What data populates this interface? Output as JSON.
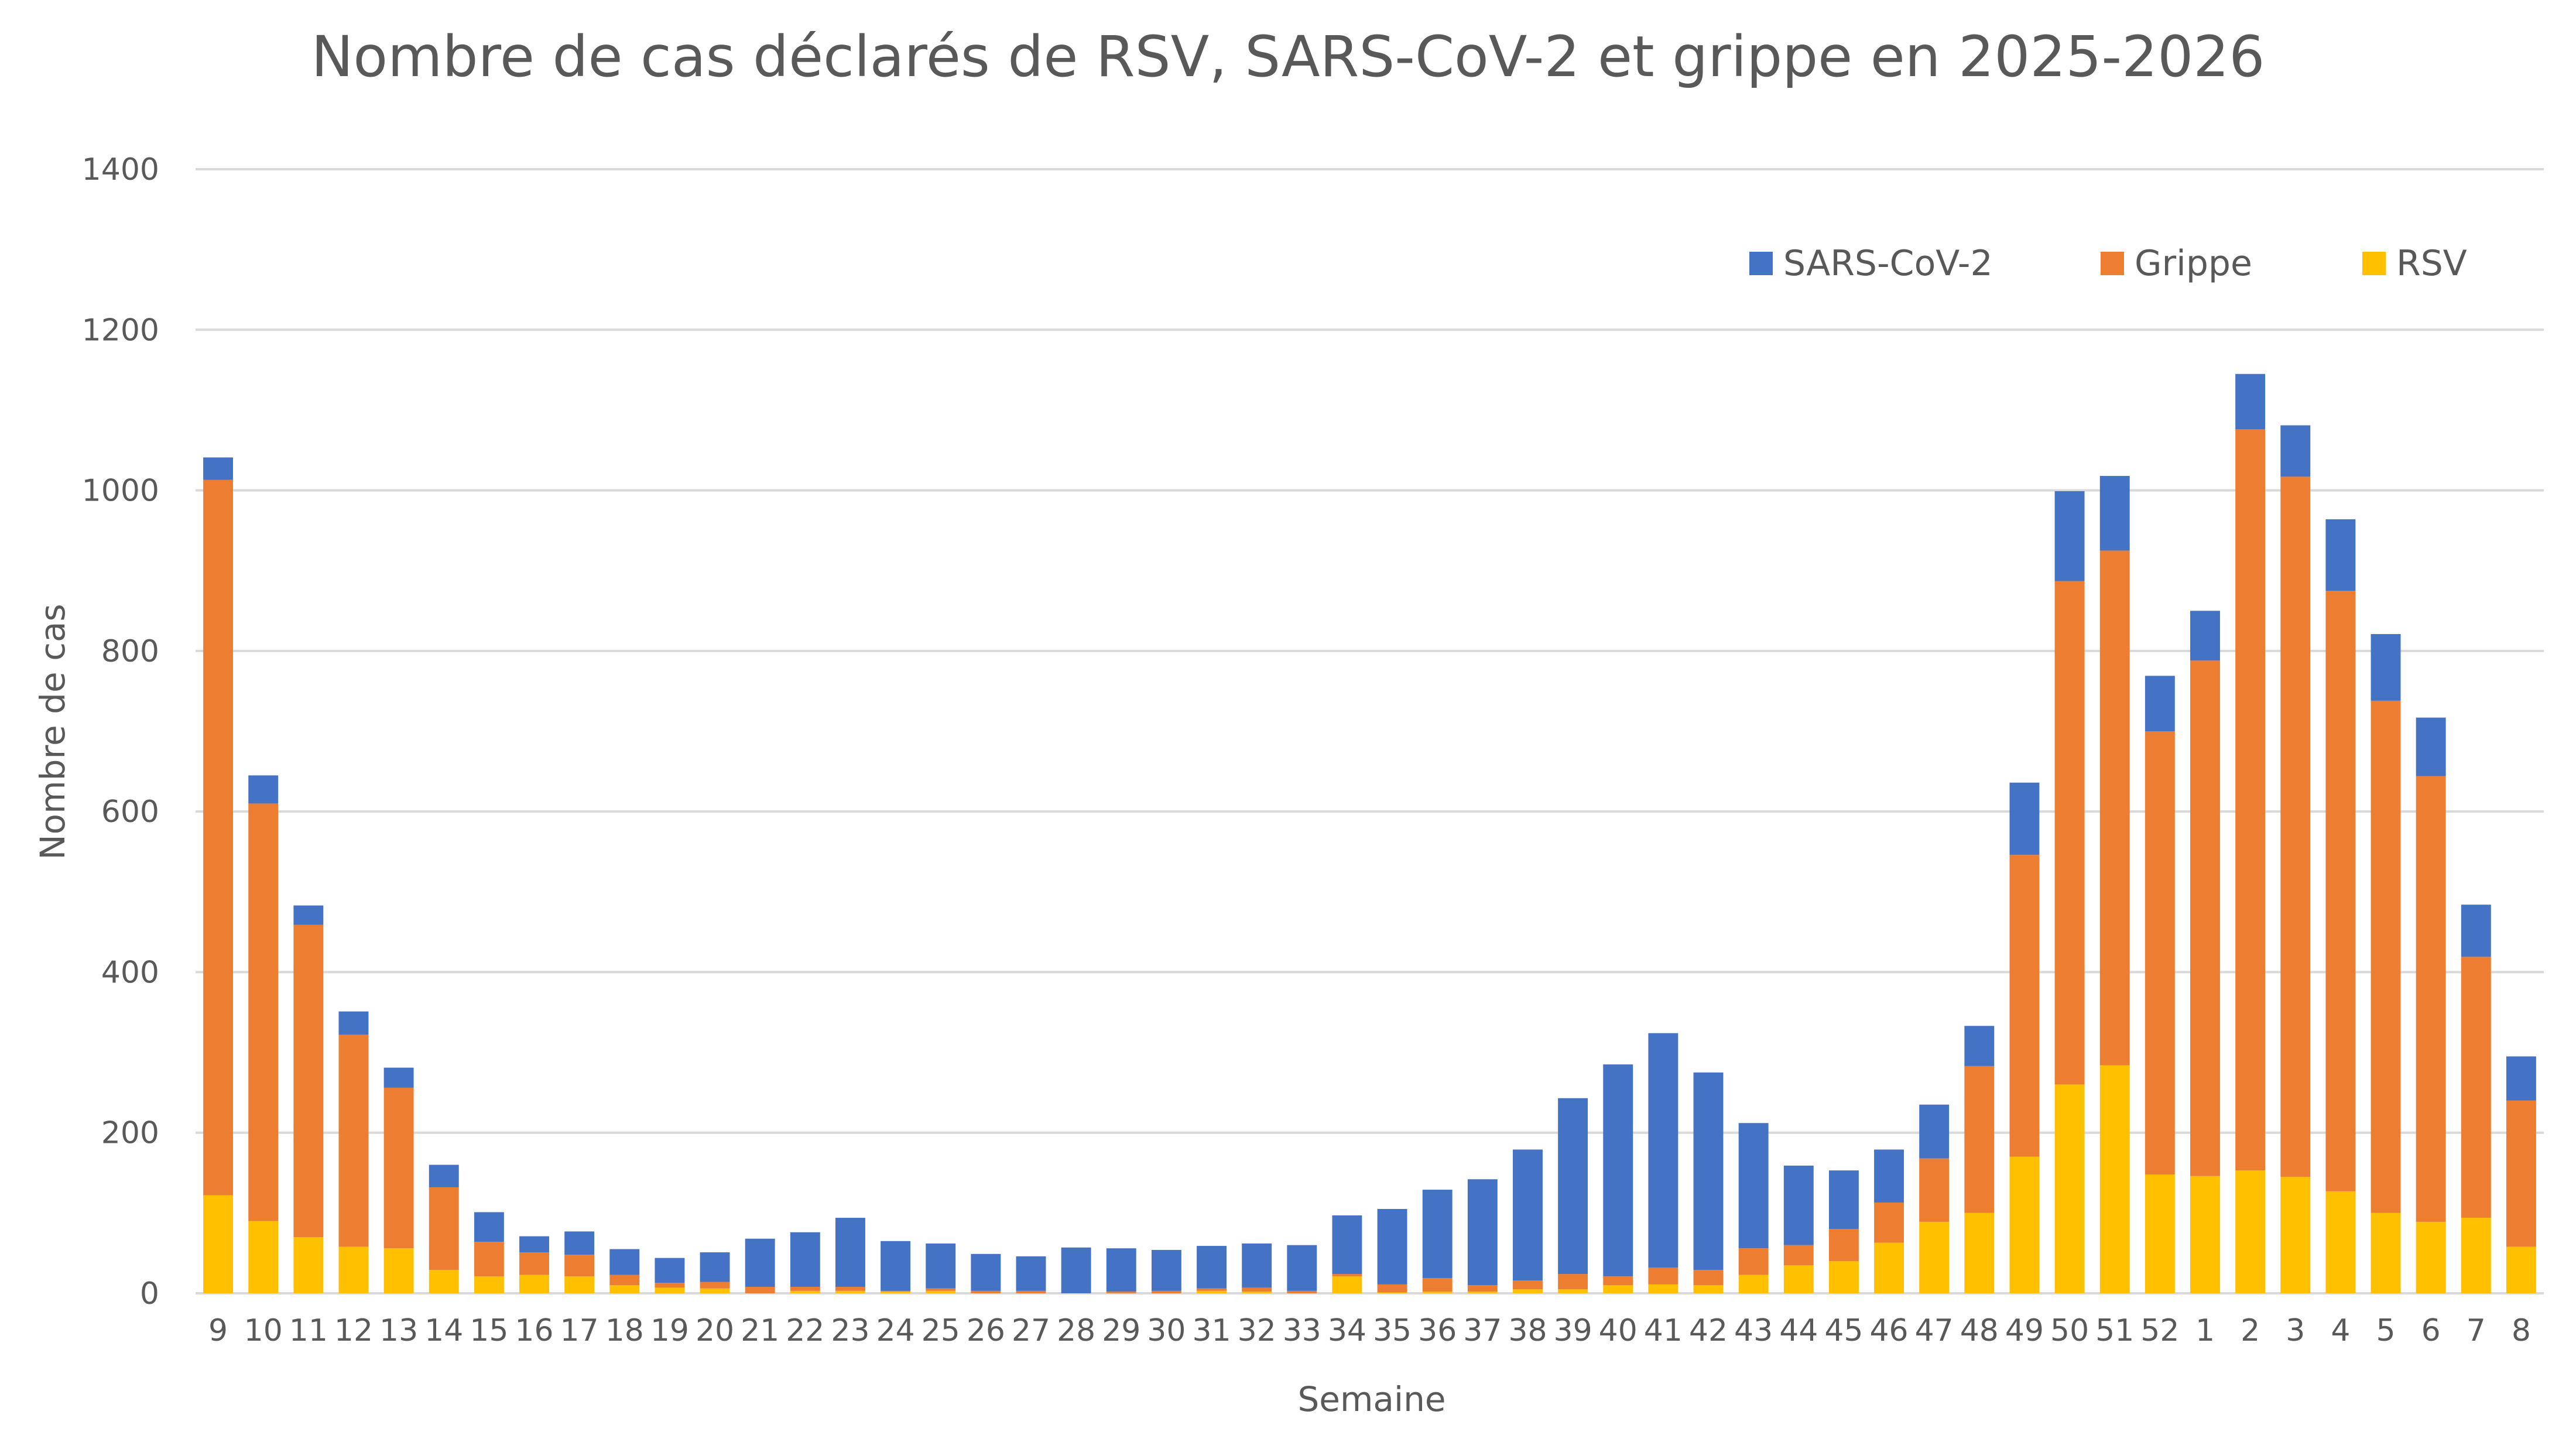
{
  "chart_data": {
    "type": "bar",
    "stacked": true,
    "title": "Nombre de cas déclarés de RSV, SARS-CoV-2 et grippe en 2025-2026",
    "xlabel": "Semaine",
    "ylabel": "Nombre de cas",
    "ylim": [
      0,
      1400
    ],
    "yticks": [
      0,
      200,
      400,
      600,
      800,
      1000,
      1200,
      1400
    ],
    "grid": true,
    "legend_position": "top-right",
    "categories": [
      "9",
      "10",
      "11",
      "12",
      "13",
      "14",
      "15",
      "16",
      "17",
      "18",
      "19",
      "20",
      "21",
      "22",
      "23",
      "24",
      "25",
      "26",
      "27",
      "28",
      "29",
      "30",
      "31",
      "32",
      "33",
      "34",
      "35",
      "36",
      "37",
      "38",
      "39",
      "40",
      "41",
      "42",
      "43",
      "44",
      "45",
      "46",
      "47",
      "48",
      "49",
      "50",
      "51",
      "52",
      "1",
      "2",
      "3",
      "4",
      "5",
      "6",
      "7",
      "8"
    ],
    "series": [
      {
        "name": "RSV",
        "color": "#FFC000",
        "values": [
          122,
          90,
          70,
          58,
          56,
          29,
          21,
          23,
          21,
          10,
          7,
          6,
          0,
          3,
          3,
          2,
          3,
          0,
          0,
          0,
          0,
          0,
          3,
          2,
          0,
          21,
          1,
          2,
          2,
          5,
          5,
          10,
          11,
          10,
          23,
          35,
          40,
          63,
          89,
          100,
          170,
          260,
          284,
          148,
          146,
          153,
          145,
          127,
          100,
          89,
          94,
          58
        ]
      },
      {
        "name": "Grippe",
        "color": "#ED7D31",
        "values": [
          891,
          520,
          389,
          264,
          200,
          103,
          43,
          28,
          27,
          13,
          6,
          8,
          8,
          5,
          5,
          1,
          3,
          3,
          3,
          0,
          2,
          3,
          3,
          5,
          3,
          3,
          10,
          17,
          8,
          11,
          19,
          11,
          21,
          19,
          33,
          25,
          40,
          50,
          79,
          183,
          376,
          627,
          641,
          552,
          642,
          923,
          872,
          748,
          638,
          555,
          325,
          182
        ]
      },
      {
        "name": "SARS-CoV-2",
        "color": "#4472C4",
        "values": [
          28,
          35,
          24,
          29,
          25,
          28,
          37,
          20,
          29,
          32,
          31,
          37,
          60,
          68,
          86,
          62,
          56,
          46,
          43,
          57,
          54,
          51,
          53,
          55,
          57,
          73,
          94,
          110,
          132,
          163,
          219,
          264,
          292,
          246,
          156,
          99,
          73,
          66,
          67,
          50,
          90,
          112,
          93,
          69,
          62,
          69,
          64,
          89,
          83,
          73,
          65,
          55
        ]
      }
    ],
    "legend_order": [
      "SARS-CoV-2",
      "Grippe",
      "RSV"
    ],
    "gridline_color": "#D9D9D9",
    "text_color": "#595959"
  }
}
